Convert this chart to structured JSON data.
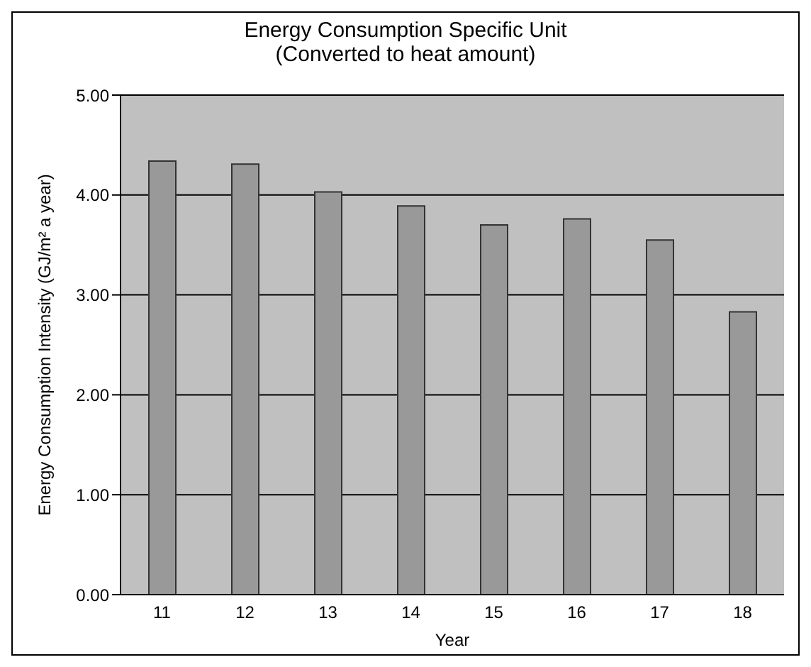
{
  "chart_data": {
    "type": "bar",
    "title": "Energy Consumption Specific Unit\n(Converted to heat amount)",
    "xlabel": "Year",
    "ylabel": "Energy Consumption Intensity (GJ/m² a year)",
    "categories": [
      "11",
      "12",
      "13",
      "14",
      "15",
      "16",
      "17",
      "18"
    ],
    "values": [
      4.34,
      4.31,
      4.03,
      3.89,
      3.7,
      3.76,
      3.55,
      2.83
    ],
    "color": "#999999",
    "ylim": [
      0,
      5
    ],
    "yticks": [
      {
        "value": 0,
        "label": "0.00"
      },
      {
        "value": 1,
        "label": "1.00"
      },
      {
        "value": 2,
        "label": "2.00"
      },
      {
        "value": 3,
        "label": "3.00"
      },
      {
        "value": 4,
        "label": "4.00"
      },
      {
        "value": 5,
        "label": "5.00"
      }
    ],
    "grid": "y",
    "legend": false
  }
}
